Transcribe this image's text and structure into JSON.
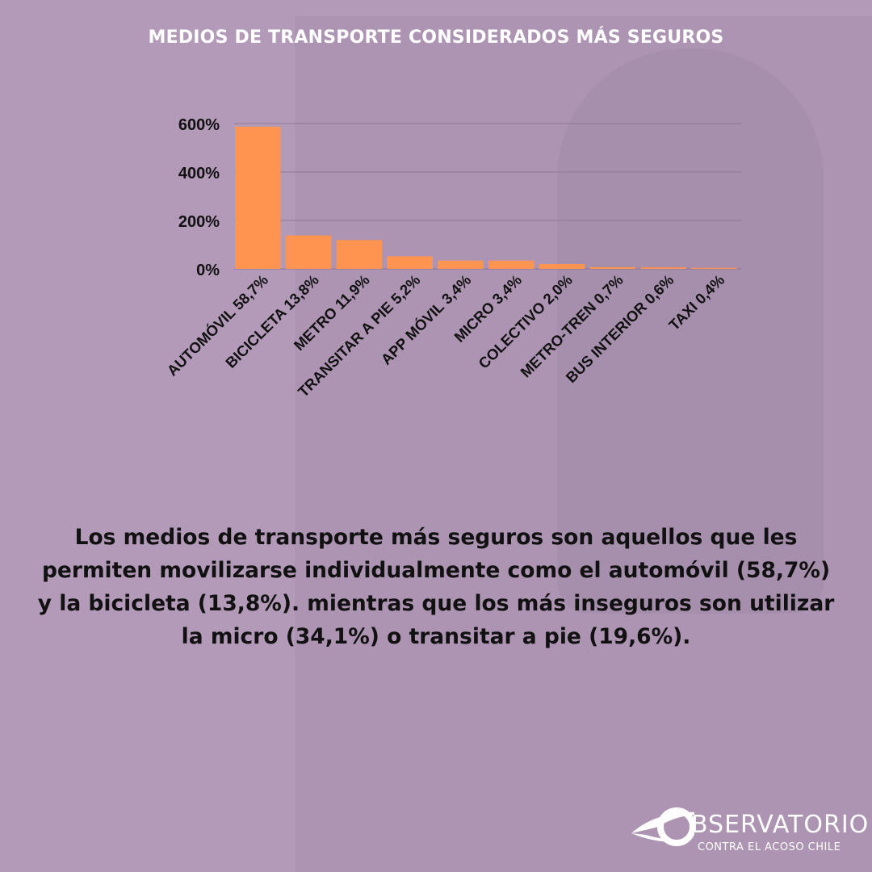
{
  "title": "MEDIOS DE TRANSPORTE CONSIDERADOS MÁS SEGUROS",
  "chart_data": {
    "type": "bar",
    "title": "",
    "xlabel": "",
    "ylabel": "",
    "categories": [
      "AUTOMÓVIL 58,7%",
      "BICICLETA 13,8%",
      "METRO 11,9%",
      "TRANSITAR A PIE 5,2%",
      "APP MÓVIL 3,4%",
      "MICRO 3,4%",
      "COLECTIVO 2,0%",
      "METRO-TREN 0,7%",
      "BUS INTERIOR 0,6%",
      "TAXI 0,4%"
    ],
    "values": [
      587,
      138,
      119,
      52,
      34,
      34,
      20,
      7,
      6,
      4
    ],
    "ylim": [
      0,
      600
    ],
    "yticks": [
      "0%",
      "200%",
      "400%",
      "600%"
    ],
    "ytick_values": [
      0,
      200,
      400,
      600
    ],
    "grid": true,
    "bar_color": "#fd9450"
  },
  "body_text": "Los medios de transporte más seguros son aquellos que les permiten movilizarse individualmente como el automóvil (58,7%) y la bicicleta (13,8%). mientras que los más inseguros son utilizar la micro (34,1%) o transitar a pie (19,6%).",
  "logo": {
    "main": "BSERVATORIO",
    "sub": "CONTRA EL ACOSO CHILE",
    "full": "OBSERVATORIO CONTRA EL ACOSO CHILE"
  }
}
